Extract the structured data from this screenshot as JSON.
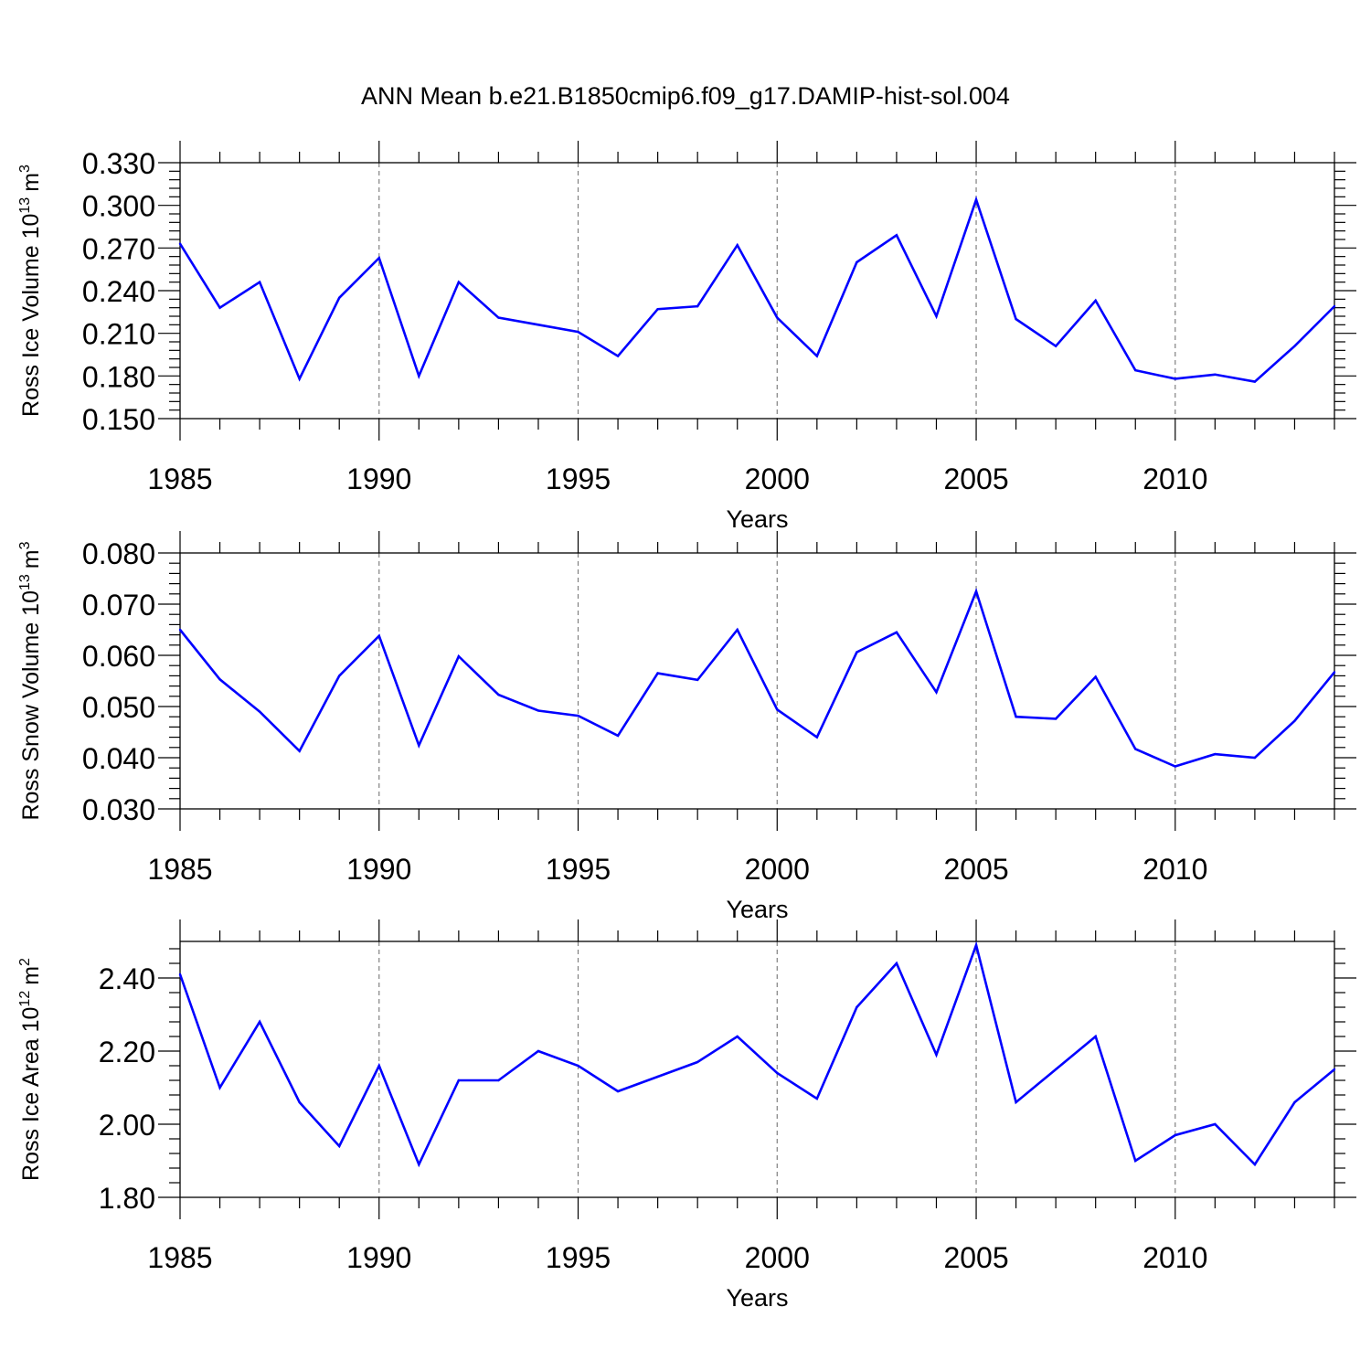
{
  "title": "ANN Mean b.e21.B1850cmip6.f09_g17.DAMIP-hist-sol.004",
  "colors": {
    "line": "#0000ff",
    "axis": "#000000",
    "grid": "#808080"
  },
  "chart_data": [
    {
      "type": "line",
      "ylabel": "Ross Ice Volume 10",
      "ylabel_exp": "13",
      "ylabel_unit": "m",
      "ylabel_unit_exp": "3",
      "xlabel": "Years",
      "xlim": [
        1985,
        2014
      ],
      "ylim": [
        0.15,
        0.33
      ],
      "yticks": [
        0.15,
        0.18,
        0.21,
        0.24,
        0.27,
        0.3,
        0.33
      ],
      "ytick_labels": [
        "0.150",
        "0.180",
        "0.210",
        "0.240",
        "0.270",
        "0.300",
        "0.330"
      ],
      "xticks": [
        1985,
        1990,
        1995,
        2000,
        2005,
        2010
      ],
      "xtick_labels": [
        "1985",
        "1990",
        "1995",
        "2000",
        "2005",
        "2010"
      ],
      "grid": "vertical dashed at major x ticks",
      "x": [
        1985,
        1986,
        1987,
        1988,
        1989,
        1990,
        1991,
        1992,
        1993,
        1994,
        1995,
        1996,
        1997,
        1998,
        1999,
        2000,
        2001,
        2002,
        2003,
        2004,
        2005,
        2006,
        2007,
        2008,
        2009,
        2010,
        2011,
        2012,
        2013,
        2014
      ],
      "values": [
        0.273,
        0.228,
        0.246,
        0.178,
        0.235,
        0.263,
        0.18,
        0.246,
        0.221,
        0.216,
        0.211,
        0.194,
        0.227,
        0.229,
        0.272,
        0.221,
        0.194,
        0.26,
        0.279,
        0.222,
        0.304,
        0.22,
        0.201,
        0.233,
        0.184,
        0.178,
        0.181,
        0.176,
        0.201,
        0.229
      ]
    },
    {
      "type": "line",
      "ylabel": "Ross Snow Volume 10",
      "ylabel_exp": "13",
      "ylabel_unit": "m",
      "ylabel_unit_exp": "3",
      "xlabel": "Years",
      "xlim": [
        1985,
        2014
      ],
      "ylim": [
        0.03,
        0.08
      ],
      "yticks": [
        0.03,
        0.04,
        0.05,
        0.06,
        0.07,
        0.08
      ],
      "ytick_labels": [
        "0.030",
        "0.040",
        "0.050",
        "0.060",
        "0.070",
        "0.080"
      ],
      "xticks": [
        1985,
        1990,
        1995,
        2000,
        2005,
        2010
      ],
      "xtick_labels": [
        "1985",
        "1990",
        "1995",
        "2000",
        "2005",
        "2010"
      ],
      "grid": "vertical dashed at major x ticks",
      "x": [
        1985,
        1986,
        1987,
        1988,
        1989,
        1990,
        1991,
        1992,
        1993,
        1994,
        1995,
        1996,
        1997,
        1998,
        1999,
        2000,
        2001,
        2002,
        2003,
        2004,
        2005,
        2006,
        2007,
        2008,
        2009,
        2010,
        2011,
        2012,
        2013,
        2014
      ],
      "values": [
        0.065,
        0.0553,
        0.049,
        0.0413,
        0.056,
        0.0638,
        0.0424,
        0.0598,
        0.0523,
        0.0492,
        0.0482,
        0.0443,
        0.0565,
        0.0552,
        0.065,
        0.0494,
        0.044,
        0.0606,
        0.0645,
        0.0528,
        0.0725,
        0.048,
        0.0476,
        0.0558,
        0.0417,
        0.0383,
        0.0407,
        0.04,
        0.0472,
        0.0567
      ]
    },
    {
      "type": "line",
      "ylabel": "Ross Ice Area 10",
      "ylabel_exp": "12",
      "ylabel_unit": "m",
      "ylabel_unit_exp": "2",
      "xlabel": "Years",
      "xlim": [
        1985,
        2014
      ],
      "ylim": [
        1.8,
        2.5
      ],
      "yticks": [
        1.8,
        2.0,
        2.2,
        2.4
      ],
      "ytick_labels": [
        "1.80",
        "2.00",
        "2.20",
        "2.40"
      ],
      "xticks": [
        1985,
        1990,
        1995,
        2000,
        2005,
        2010
      ],
      "xtick_labels": [
        "1985",
        "1990",
        "1995",
        "2000",
        "2005",
        "2010"
      ],
      "grid": "vertical dashed at major x ticks",
      "x": [
        1985,
        1986,
        1987,
        1988,
        1989,
        1990,
        1991,
        1992,
        1993,
        1994,
        1995,
        1996,
        1997,
        1998,
        1999,
        2000,
        2001,
        2002,
        2003,
        2004,
        2005,
        2006,
        2007,
        2008,
        2009,
        2010,
        2011,
        2012,
        2013,
        2014
      ],
      "values": [
        2.41,
        2.1,
        2.28,
        2.06,
        1.94,
        2.16,
        1.89,
        2.12,
        2.12,
        2.2,
        2.16,
        2.09,
        2.13,
        2.17,
        2.24,
        2.14,
        2.07,
        2.32,
        2.44,
        2.19,
        2.49,
        2.06,
        2.15,
        2.24,
        1.9,
        1.97,
        2.0,
        1.89,
        2.06,
        2.15
      ]
    }
  ]
}
